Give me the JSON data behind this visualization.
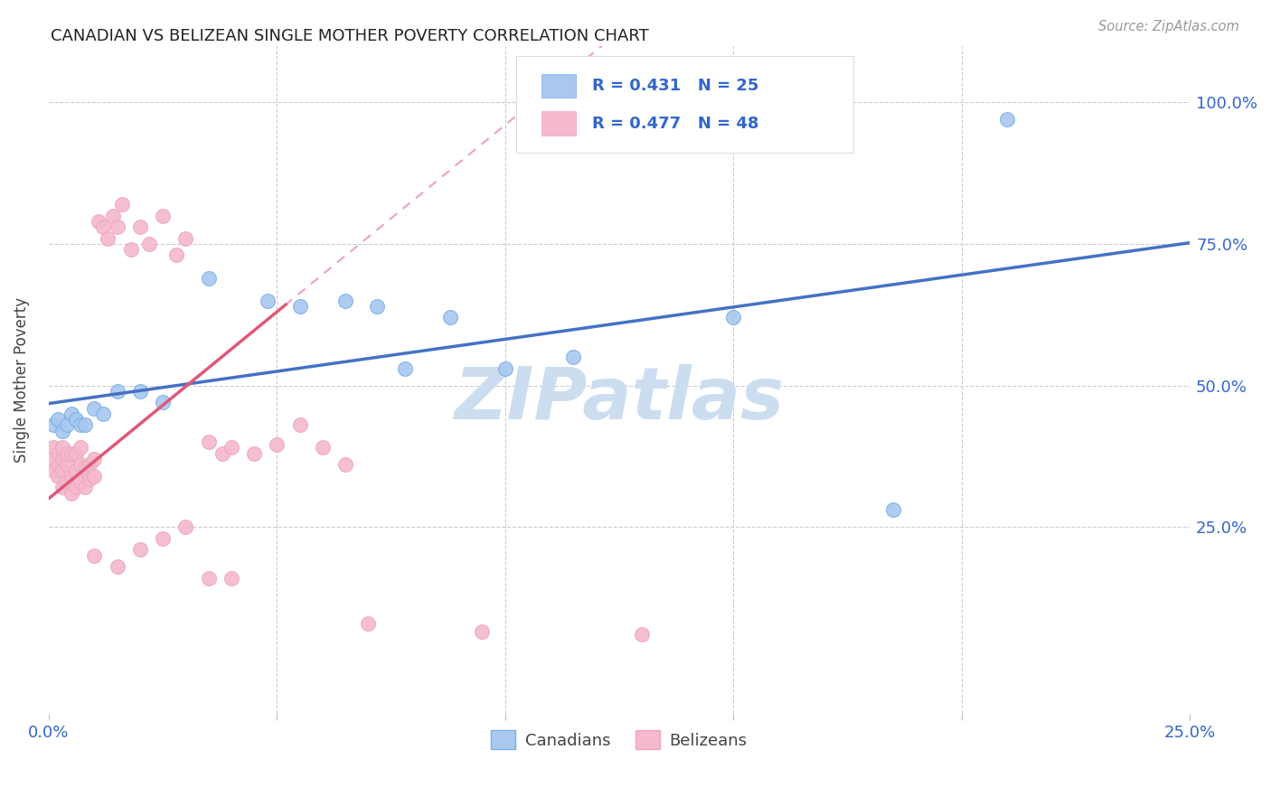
{
  "title": "CANADIAN VS BELIZEAN SINGLE MOTHER POVERTY CORRELATION CHART",
  "source": "Source: ZipAtlas.com",
  "ylabel": "Single Mother Poverty",
  "xlim": [
    0.0,
    0.25
  ],
  "ylim": [
    -0.08,
    1.1
  ],
  "canadian_R": 0.431,
  "canadian_N": 25,
  "belizean_R": 0.477,
  "belizean_N": 48,
  "canadian_color": "#a8c8f0",
  "canadian_edge_color": "#7aaee8",
  "belizean_color": "#f5b8cc",
  "belizean_edge_color": "#eda8bc",
  "canadian_line_color": "#4472c4",
  "belizean_line_color": "#e05878",
  "belizean_dash_color": "#f0a0b8",
  "watermark": "ZIPatlas",
  "watermark_color": "#ccddf0",
  "background_color": "#ffffff",
  "grid_color": "#cccccc",
  "canadian_x": [
    0.001,
    0.002,
    0.003,
    0.004,
    0.005,
    0.006,
    0.007,
    0.008,
    0.01,
    0.012,
    0.015,
    0.02,
    0.025,
    0.035,
    0.048,
    0.055,
    0.065,
    0.072,
    0.078,
    0.088,
    0.1,
    0.115,
    0.15,
    0.185,
    0.21
  ],
  "canadian_y": [
    0.43,
    0.44,
    0.42,
    0.43,
    0.45,
    0.44,
    0.43,
    0.43,
    0.46,
    0.45,
    0.49,
    0.49,
    0.47,
    0.69,
    0.65,
    0.64,
    0.65,
    0.64,
    0.53,
    0.62,
    0.53,
    0.55,
    0.62,
    0.28,
    0.97
  ],
  "belizean_x": [
    0.001,
    0.001,
    0.001,
    0.002,
    0.002,
    0.002,
    0.003,
    0.003,
    0.003,
    0.003,
    0.004,
    0.004,
    0.004,
    0.005,
    0.005,
    0.005,
    0.006,
    0.006,
    0.006,
    0.007,
    0.007,
    0.007,
    0.008,
    0.008,
    0.009,
    0.009,
    0.01,
    0.01,
    0.011,
    0.012,
    0.013,
    0.014,
    0.015,
    0.016,
    0.018,
    0.02,
    0.022,
    0.025,
    0.028,
    0.03,
    0.035,
    0.038,
    0.04,
    0.045,
    0.05,
    0.055,
    0.06,
    0.065
  ],
  "belizean_y": [
    0.35,
    0.37,
    0.39,
    0.34,
    0.36,
    0.38,
    0.32,
    0.35,
    0.37,
    0.39,
    0.33,
    0.36,
    0.38,
    0.31,
    0.34,
    0.38,
    0.32,
    0.35,
    0.38,
    0.33,
    0.36,
    0.39,
    0.32,
    0.355,
    0.335,
    0.36,
    0.34,
    0.37,
    0.79,
    0.78,
    0.76,
    0.8,
    0.78,
    0.82,
    0.74,
    0.78,
    0.75,
    0.8,
    0.73,
    0.76,
    0.4,
    0.38,
    0.39,
    0.38,
    0.395,
    0.43,
    0.39,
    0.36
  ],
  "extra_belizean_x": [
    0.01,
    0.015,
    0.02,
    0.025,
    0.03,
    0.035,
    0.04,
    0.07,
    0.095,
    0.13
  ],
  "extra_belizean_y": [
    0.2,
    0.18,
    0.21,
    0.23,
    0.25,
    0.16,
    0.16,
    0.08,
    0.065,
    0.06
  ]
}
